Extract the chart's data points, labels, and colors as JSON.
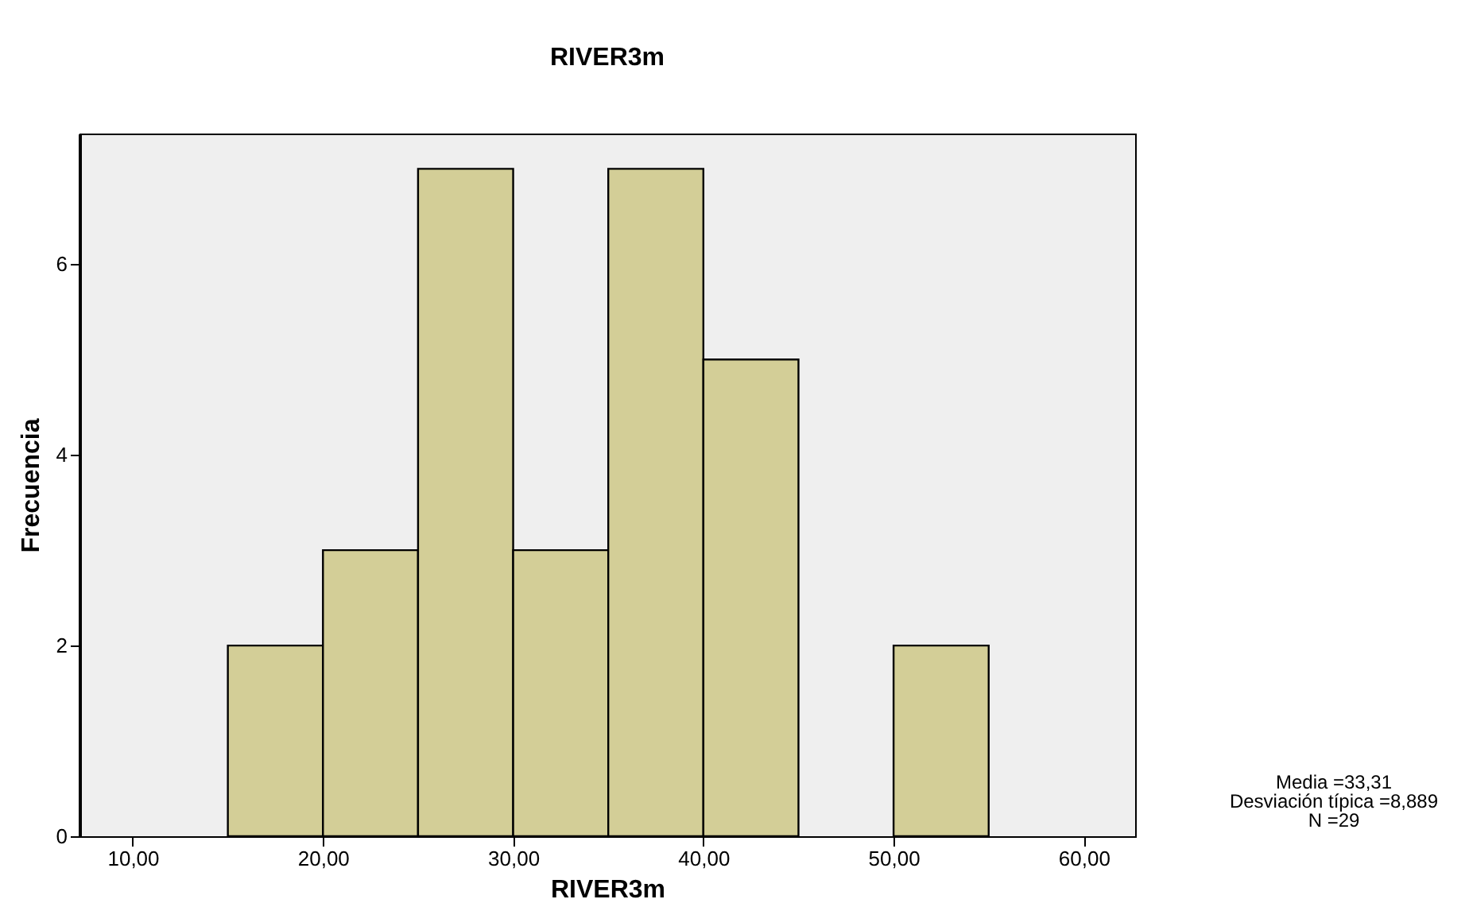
{
  "chart_data": {
    "type": "histogram",
    "title": "RIVER3m",
    "xlabel": "RIVER3m",
    "ylabel": "Frecuencia",
    "bins": [
      15,
      20,
      25,
      30,
      35,
      40,
      45,
      50,
      55
    ],
    "values": [
      2,
      3,
      7,
      3,
      7,
      5,
      0,
      2
    ],
    "color": "#d3ce97",
    "xlim": [
      7.2,
      62.7
    ],
    "xticks": [
      {
        "value": 10,
        "label": "10,00"
      },
      {
        "value": 20,
        "label": "20,00"
      },
      {
        "value": 30,
        "label": "30,00"
      },
      {
        "value": 40,
        "label": "40,00"
      },
      {
        "value": 50,
        "label": "50,00"
      },
      {
        "value": 60,
        "label": "60,00"
      }
    ],
    "ylim": [
      0,
      7.37
    ],
    "yticks": [
      0,
      2,
      4,
      6
    ],
    "grid": false,
    "annotations": [
      "Media =33,31",
      "Desviación típica =8,889",
      "N =29"
    ]
  }
}
